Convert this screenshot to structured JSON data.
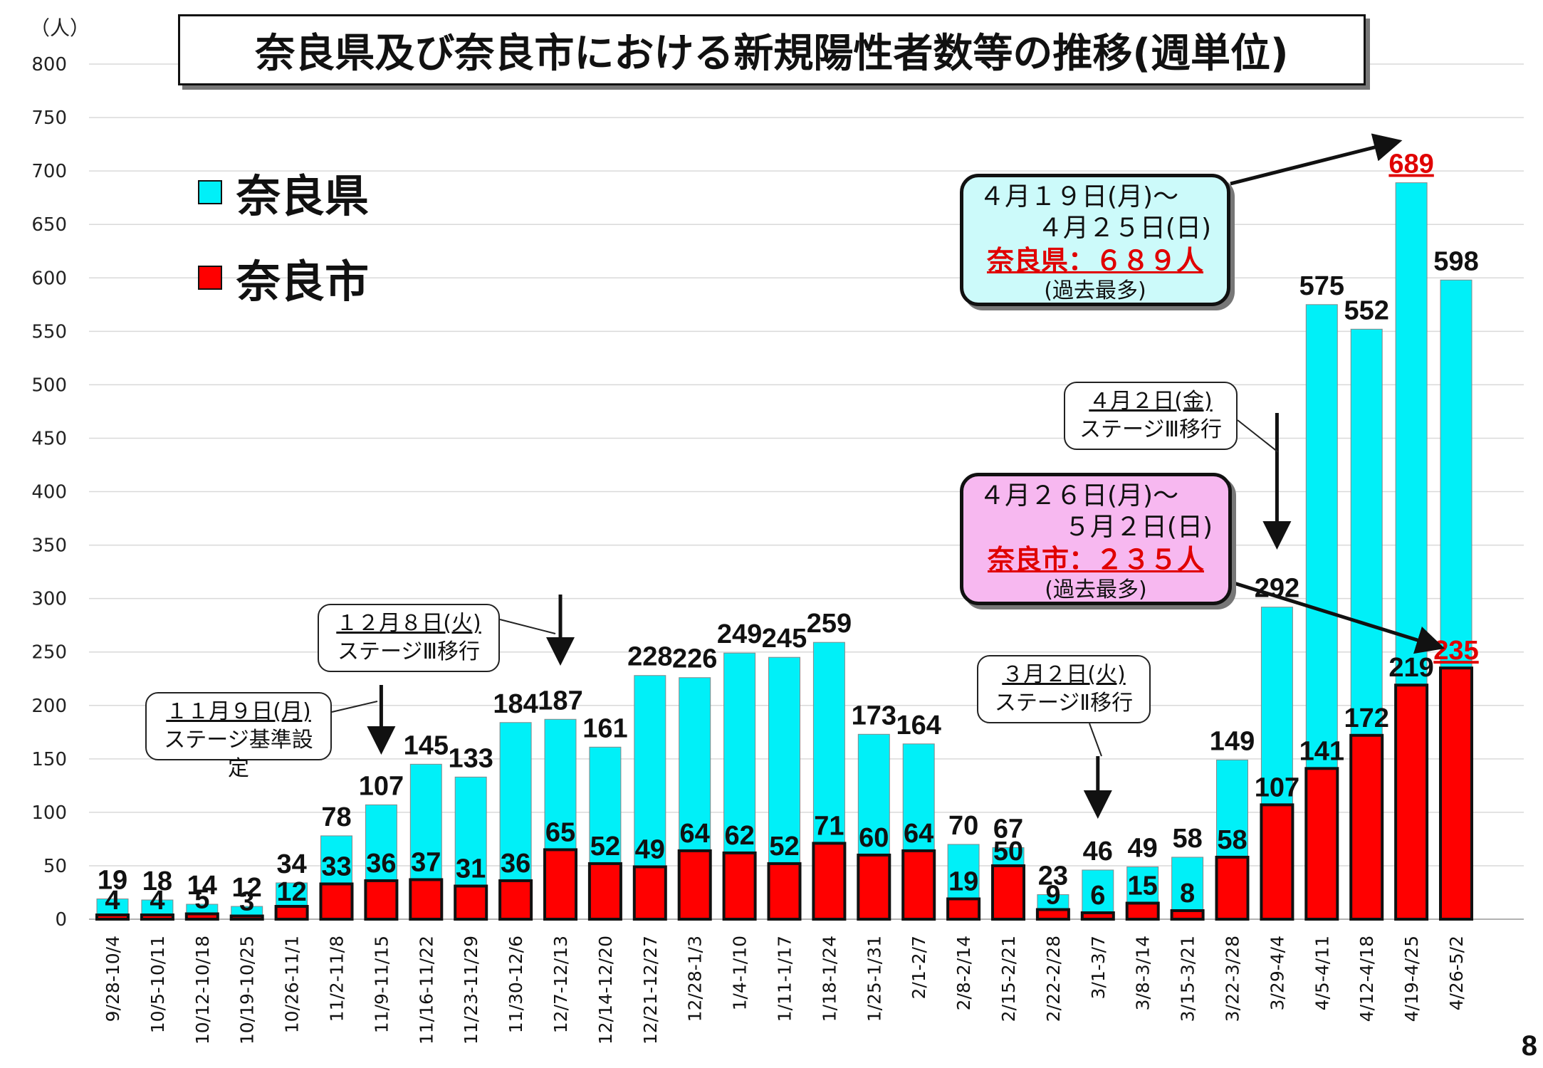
{
  "title": "奈良県及び奈良市における新規陽性者数等の推移(週単位)",
  "unit": "（人）",
  "page_number": "8",
  "legend": [
    {
      "label": "奈良県",
      "color": "#00f0f8"
    },
    {
      "label": "奈良市",
      "color": "#ff0000"
    }
  ],
  "colors": {
    "prefecture": "#00f0f8",
    "city": "#ff0000",
    "highlight": "#e00000",
    "callout_cyan": "#ccfafa",
    "callout_pink": "#f7b8f0"
  },
  "callouts": {
    "nov9": {
      "date": "１１月９日(月)",
      "text": "ステージ基準設定"
    },
    "dec8": {
      "date": "１２月８日(火)",
      "text": "ステージⅢ移行"
    },
    "mar2": {
      "date": "３月２日(火)",
      "text": "ステージⅡ移行"
    },
    "apr2": {
      "date": "４月２日(金)",
      "text": "ステージⅢ移行"
    },
    "apr19": {
      "line1": "４月１９日(月)～",
      "line2": "４月２５日(日)",
      "highlight": "奈良県：６８９人",
      "note": "(過去最多)"
    },
    "apr26": {
      "line1": "４月２６日(月)～",
      "line2": "５月２日(日)",
      "highlight": "奈良市：２３５人",
      "note": "(過去最多)"
    }
  },
  "chart_data": {
    "type": "bar",
    "title": "奈良県及び奈良市における新規陽性者数等の推移(週単位)",
    "ylabel": "（人）",
    "ylim": [
      0,
      800
    ],
    "yticks": [
      0,
      50,
      100,
      150,
      200,
      250,
      300,
      350,
      400,
      450,
      500,
      550,
      600,
      650,
      700,
      750,
      800
    ],
    "grid": true,
    "legend": "top-left",
    "categories": [
      "9/28-10/4",
      "10/5-10/11",
      "10/12-10/18",
      "10/19-10/25",
      "10/26-11/1",
      "11/2-11/8",
      "11/9-11/15",
      "11/16-11/22",
      "11/23-11/29",
      "11/30-12/6",
      "12/7-12/13",
      "12/14-12/20",
      "12/21-12/27",
      "12/28-1/3",
      "1/4-1/10",
      "1/11-1/17",
      "1/18-1/24",
      "1/25-1/31",
      "2/1-2/7",
      "2/8-2/14",
      "2/15-2/21",
      "2/22-2/28",
      "3/1-3/7",
      "3/8-3/14",
      "3/15-3/21",
      "3/22-3/28",
      "3/29-4/4",
      "4/5-4/11",
      "4/12-4/18",
      "4/19-4/25",
      "4/26-5/2"
    ],
    "series": [
      {
        "name": "奈良県",
        "values": [
          19,
          18,
          14,
          12,
          34,
          78,
          107,
          145,
          133,
          184,
          187,
          161,
          228,
          226,
          249,
          245,
          259,
          173,
          164,
          70,
          67,
          23,
          46,
          49,
          58,
          149,
          292,
          575,
          552,
          689,
          598
        ]
      },
      {
        "name": "奈良市",
        "values": [
          4,
          4,
          5,
          3,
          12,
          33,
          36,
          37,
          31,
          36,
          65,
          52,
          49,
          64,
          62,
          52,
          71,
          60,
          64,
          19,
          50,
          9,
          6,
          15,
          8,
          58,
          107,
          141,
          172,
          219,
          235
        ]
      }
    ],
    "highlighted_labels": {
      "奈良県": 29,
      "奈良市": 30
    }
  }
}
